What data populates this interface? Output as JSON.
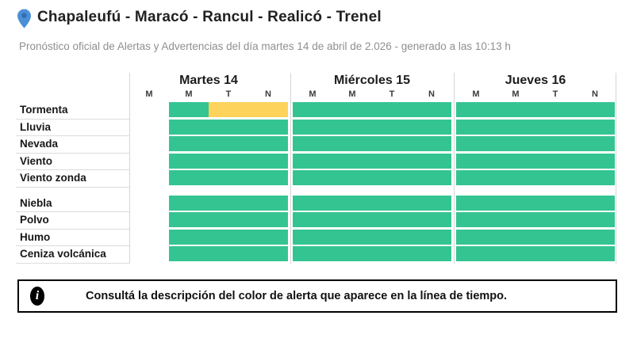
{
  "header": {
    "location_title": "Chapaleufú - Maracó - Rancul - Realicó - Trenel",
    "subtitle": "Pronóstico oficial de Alertas y Advertencias del día martes 14 de abril de 2.026 - generado a las 10:13 h",
    "pin_color": "#4b90d6",
    "pin_hole_color": "#2f6fb4"
  },
  "colors": {
    "green": "#34c492",
    "yellow": "#fdd35c",
    "none": "transparent",
    "grid_line": "#d6d6d6"
  },
  "timeline": {
    "days": [
      {
        "label": "Martes 14",
        "periods": [
          "M",
          "M",
          "T",
          "N"
        ]
      },
      {
        "label": "Miércoles 15",
        "periods": [
          "M",
          "M",
          "T",
          "N"
        ]
      },
      {
        "label": "Jueves 16",
        "periods": [
          "M",
          "M",
          "T",
          "N"
        ]
      }
    ],
    "row_groups": [
      {
        "rows": [
          {
            "label": "Tormenta",
            "cells": [
              [
                "none",
                "green",
                "yellow",
                "yellow"
              ],
              [
                "green",
                "green",
                "green",
                "green"
              ],
              [
                "green",
                "green",
                "green",
                "green"
              ]
            ]
          },
          {
            "label": "Lluvia",
            "cells": [
              [
                "none",
                "green",
                "green",
                "green"
              ],
              [
                "green",
                "green",
                "green",
                "green"
              ],
              [
                "green",
                "green",
                "green",
                "green"
              ]
            ]
          },
          {
            "label": "Nevada",
            "cells": [
              [
                "none",
                "green",
                "green",
                "green"
              ],
              [
                "green",
                "green",
                "green",
                "green"
              ],
              [
                "green",
                "green",
                "green",
                "green"
              ]
            ]
          },
          {
            "label": "Viento",
            "cells": [
              [
                "none",
                "green",
                "green",
                "green"
              ],
              [
                "green",
                "green",
                "green",
                "green"
              ],
              [
                "green",
                "green",
                "green",
                "green"
              ]
            ]
          },
          {
            "label": "Viento zonda",
            "cells": [
              [
                "none",
                "green",
                "green",
                "green"
              ],
              [
                "green",
                "green",
                "green",
                "green"
              ],
              [
                "green",
                "green",
                "green",
                "green"
              ]
            ]
          }
        ]
      },
      {
        "rows": [
          {
            "label": "Niebla",
            "cells": [
              [
                "none",
                "green",
                "green",
                "green"
              ],
              [
                "green",
                "green",
                "green",
                "green"
              ],
              [
                "green",
                "green",
                "green",
                "green"
              ]
            ]
          },
          {
            "label": "Polvo",
            "cells": [
              [
                "none",
                "green",
                "green",
                "green"
              ],
              [
                "green",
                "green",
                "green",
                "green"
              ],
              [
                "green",
                "green",
                "green",
                "green"
              ]
            ]
          },
          {
            "label": "Humo",
            "cells": [
              [
                "none",
                "green",
                "green",
                "green"
              ],
              [
                "green",
                "green",
                "green",
                "green"
              ],
              [
                "green",
                "green",
                "green",
                "green"
              ]
            ]
          },
          {
            "label": "Ceniza volcánica",
            "cells": [
              [
                "none",
                "green",
                "green",
                "green"
              ],
              [
                "green",
                "green",
                "green",
                "green"
              ],
              [
                "green",
                "green",
                "green",
                "green"
              ]
            ]
          }
        ]
      }
    ]
  },
  "notice": {
    "text": "Consultá la descripción del color de alerta que aparece en la línea de tiempo."
  }
}
